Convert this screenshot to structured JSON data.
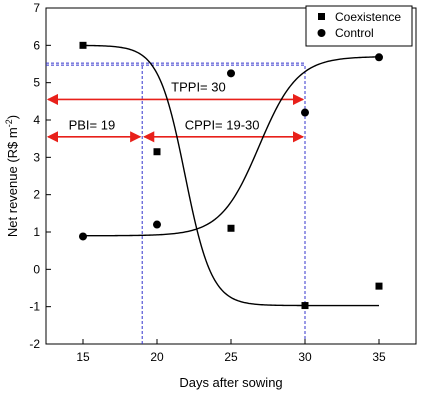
{
  "chart_data": {
    "type": "scatter",
    "xlabel": "Days after sowing",
    "ylabel_main": "Net revenue (R$ m",
    "ylabel_sup": "-2",
    "ylabel_close": ")",
    "xlim": [
      12.5,
      37.5
    ],
    "ylim": [
      -2,
      7
    ],
    "x_ticks": [
      15,
      20,
      25,
      30,
      35
    ],
    "y_ticks": [
      -2,
      -1,
      0,
      1,
      2,
      3,
      4,
      5,
      6,
      7
    ],
    "legend_position": "top-right",
    "series": [
      {
        "name": "Coexistence",
        "marker": "square",
        "x": [
          15,
          20,
          25,
          30,
          35
        ],
        "y": [
          6.0,
          3.15,
          1.1,
          -0.97,
          -0.45
        ],
        "fit": {
          "model": "sigmoid-decreasing",
          "upper": 6.0,
          "lower": -0.97,
          "midpoint": 21.9,
          "scale": 0.9
        }
      },
      {
        "name": "Control",
        "marker": "circle",
        "x": [
          15,
          20,
          25,
          30,
          35
        ],
        "y": [
          0.88,
          1.2,
          5.25,
          4.2,
          5.68
        ],
        "fit": {
          "model": "sigmoid-increasing",
          "lower": 0.9,
          "upper": 5.7,
          "midpoint": 26.9,
          "scale": 1.3
        }
      }
    ],
    "reference_lines": {
      "vertical_x": [
        19,
        30
      ],
      "horizontal_y": 5.47,
      "color": "#3333cc"
    },
    "intervals": [
      {
        "label": "TPPI= 30",
        "start": 12.5,
        "end": 30,
        "y": 4.55,
        "label_x": 22.8,
        "label_y": 4.9
      },
      {
        "label": "PBI= 19",
        "start": 12.5,
        "end": 19,
        "y": 3.55,
        "label_x": 15.6,
        "label_y": 3.88
      },
      {
        "label": "CPPI= 19-30",
        "start": 19,
        "end": 30,
        "y": 3.55,
        "label_x": 24.4,
        "label_y": 3.88
      }
    ],
    "interval_color": "#e8201a"
  }
}
